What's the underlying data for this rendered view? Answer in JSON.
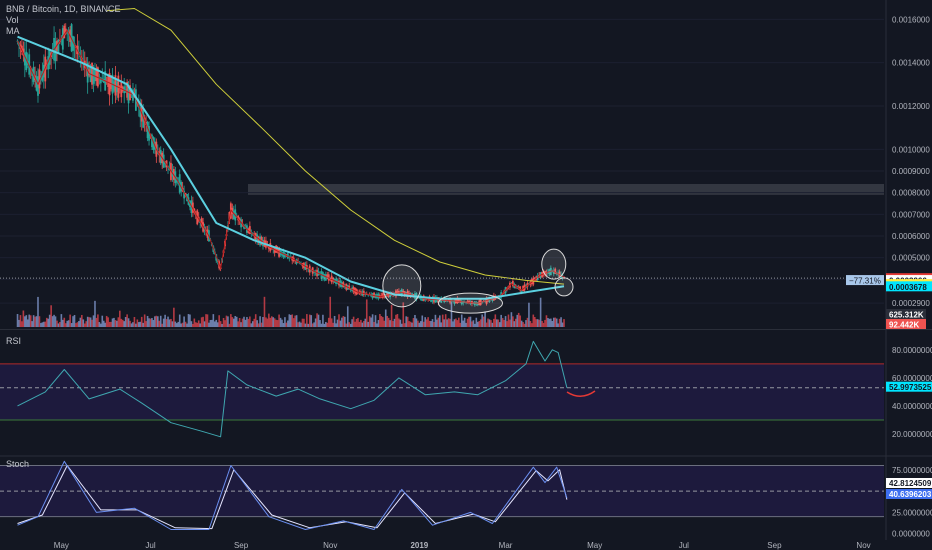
{
  "header": {
    "title": "BNB / Bitcoin, 1D, BINANCE",
    "vol_label": "Vol",
    "ma_label": "MA"
  },
  "colors": {
    "background": "#131722",
    "up": "#26a69a",
    "down": "#ef5350",
    "ma_fast": "#b71c1c",
    "ma_cyan": "#5bd0e0",
    "ma_yellow": "#cfcf3a",
    "rsi_line": "#3fa7b0",
    "stoch_k": "#6b8ff0",
    "stoch_d": "#e6e6ff",
    "band_fill": "#1d1a3d",
    "resistance": "#3a3d47",
    "annotation": "#d9d9d9",
    "curve": "#e53935"
  },
  "chart_data": [
    {
      "type": "candlestick",
      "title": "BNB / Bitcoin, 1D, BINANCE",
      "ylim": [
        0.00018,
        0.00168
      ],
      "y_ticks": [
        "0.0016000",
        "0.0014000",
        "0.0012000",
        "0.0010000",
        "0.0009000",
        "0.0008000",
        "0.0007000",
        "0.0006000",
        "0.0005000",
        "0.0004000",
        "0.0002900"
      ],
      "y_tick_values": [
        0.0016,
        0.0014,
        0.0012,
        0.001,
        0.0009,
        0.0008,
        0.0007,
        0.0006,
        0.0005,
        0.0004,
        0.00029
      ],
      "price_series": [
        {
          "t": "2018-04-01",
          "v": 0.0015
        },
        {
          "t": "2018-04-15",
          "v": 0.0013
        },
        {
          "t": "2018-04-25",
          "v": 0.00145
        },
        {
          "t": "2018-05-05",
          "v": 0.00155
        },
        {
          "t": "2018-05-20",
          "v": 0.00135
        },
        {
          "t": "2018-06-05",
          "v": 0.0013
        },
        {
          "t": "2018-06-20",
          "v": 0.00125
        },
        {
          "t": "2018-07-05",
          "v": 0.001
        },
        {
          "t": "2018-07-20",
          "v": 0.00085
        },
        {
          "t": "2018-08-01",
          "v": 0.0007
        },
        {
          "t": "2018-08-10",
          "v": 0.0006
        },
        {
          "t": "2018-08-18",
          "v": 0.00045
        },
        {
          "t": "2018-08-25",
          "v": 0.00072
        },
        {
          "t": "2018-09-05",
          "v": 0.00063
        },
        {
          "t": "2018-09-20",
          "v": 0.00055
        },
        {
          "t": "2018-10-05",
          "v": 0.0005
        },
        {
          "t": "2018-10-20",
          "v": 0.00044
        },
        {
          "t": "2018-11-05",
          "v": 0.00039
        },
        {
          "t": "2018-11-20",
          "v": 0.00034
        },
        {
          "t": "2018-12-05",
          "v": 0.00032
        },
        {
          "t": "2018-12-20",
          "v": 0.00034
        },
        {
          "t": "2019-01-05",
          "v": 0.00031
        },
        {
          "t": "2019-01-25",
          "v": 0.0003
        },
        {
          "t": "2019-02-10",
          "v": 0.00029
        },
        {
          "t": "2019-02-25",
          "v": 0.00032
        },
        {
          "t": "2019-03-05",
          "v": 0.00038
        },
        {
          "t": "2019-03-12",
          "v": 0.00035
        },
        {
          "t": "2019-03-25",
          "v": 0.00042
        },
        {
          "t": "2019-04-02",
          "v": 0.00044
        },
        {
          "t": "2019-04-10",
          "v": 0.00041
        }
      ],
      "ma_cyan": [
        {
          "t": "2018-04-01",
          "v": 0.00152
        },
        {
          "t": "2018-05-15",
          "v": 0.0014
        },
        {
          "t": "2018-06-15",
          "v": 0.0013
        },
        {
          "t": "2018-07-15",
          "v": 0.001
        },
        {
          "t": "2018-08-15",
          "v": 0.00066
        },
        {
          "t": "2018-09-10",
          "v": 0.00058
        },
        {
          "t": "2018-10-15",
          "v": 0.0005
        },
        {
          "t": "2018-11-15",
          "v": 0.00039
        },
        {
          "t": "2018-12-15",
          "v": 0.00033
        },
        {
          "t": "2019-01-15",
          "v": 0.00031
        },
        {
          "t": "2019-02-15",
          "v": 0.00031
        },
        {
          "t": "2019-03-15",
          "v": 0.00034
        },
        {
          "t": "2019-04-10",
          "v": 0.000368
        }
      ],
      "ma_yellow": [
        {
          "t": "2018-06-01",
          "v": 0.00164
        },
        {
          "t": "2018-06-20",
          "v": 0.00165
        },
        {
          "t": "2018-07-15",
          "v": 0.00155
        },
        {
          "t": "2018-08-15",
          "v": 0.0013
        },
        {
          "t": "2018-09-15",
          "v": 0.0011
        },
        {
          "t": "2018-10-15",
          "v": 0.0009
        },
        {
          "t": "2018-11-15",
          "v": 0.00072
        },
        {
          "t": "2018-12-15",
          "v": 0.00058
        },
        {
          "t": "2019-01-15",
          "v": 0.00048
        },
        {
          "t": "2019-02-15",
          "v": 0.00042
        },
        {
          "t": "2019-03-15",
          "v": 0.000395
        },
        {
          "t": "2019-04-10",
          "v": 0.000378
        }
      ],
      "resistance_zone": [
        0.00079,
        0.00084
      ],
      "current_price": 0.0004053,
      "price_labels": [
        {
          "text": "0.0004053",
          "value": 0.0004053,
          "color": "#e53935",
          "text_color": "#ffffff"
        },
        {
          "text": "0.0003966",
          "value": 0.0003966,
          "color": "#ffffff",
          "text_color": "#131722"
        },
        {
          "text": "0.0003778",
          "value": 0.0003778,
          "color": "#ffeb3b",
          "text_color": "#131722"
        },
        {
          "text": "0.0003678",
          "value": 0.0003678,
          "color": "#00e5ff",
          "text_color": "#131722"
        }
      ],
      "change_label": "−77.31%",
      "volume_labels": [
        {
          "text": "625.312K",
          "color": "#2a2e39",
          "text_color": "#ffffff"
        },
        {
          "text": "92.442K",
          "color": "#ef5350",
          "text_color": "#ffffff"
        }
      ],
      "annotations": [
        {
          "type": "ellipse",
          "t": "2018-12-20",
          "v": 0.00037
        },
        {
          "type": "ellipse",
          "t": "2019-02-05",
          "v": 0.00029
        },
        {
          "type": "ellipse",
          "t": "2019-04-03",
          "v": 0.00047
        },
        {
          "type": "circle",
          "t": "2019-04-10",
          "v": 0.000365
        }
      ]
    },
    {
      "type": "line",
      "title": "RSI",
      "ylim": [
        5,
        92
      ],
      "y_ticks": [
        "80.0000000",
        "60.0000000",
        "40.0000000",
        "20.0000000"
      ],
      "y_tick_values": [
        80,
        60,
        40,
        20
      ],
      "bands": [
        70,
        30
      ],
      "midline": 52.9973525,
      "value_label": "52.9973525",
      "series": [
        {
          "t": "2018-04-01",
          "v": 40
        },
        {
          "t": "2018-04-20",
          "v": 50
        },
        {
          "t": "2018-05-03",
          "v": 66
        },
        {
          "t": "2018-05-20",
          "v": 45
        },
        {
          "t": "2018-06-10",
          "v": 52
        },
        {
          "t": "2018-06-25",
          "v": 42
        },
        {
          "t": "2018-07-15",
          "v": 28
        },
        {
          "t": "2018-08-05",
          "v": 22
        },
        {
          "t": "2018-08-18",
          "v": 18
        },
        {
          "t": "2018-08-23",
          "v": 65
        },
        {
          "t": "2018-09-05",
          "v": 55
        },
        {
          "t": "2018-09-25",
          "v": 47
        },
        {
          "t": "2018-10-10",
          "v": 52
        },
        {
          "t": "2018-10-25",
          "v": 45
        },
        {
          "t": "2018-11-15",
          "v": 38
        },
        {
          "t": "2018-12-01",
          "v": 44
        },
        {
          "t": "2018-12-18",
          "v": 60
        },
        {
          "t": "2019-01-05",
          "v": 48
        },
        {
          "t": "2019-01-25",
          "v": 50
        },
        {
          "t": "2019-02-10",
          "v": 48
        },
        {
          "t": "2019-03-01",
          "v": 58
        },
        {
          "t": "2019-03-15",
          "v": 70
        },
        {
          "t": "2019-03-20",
          "v": 86
        },
        {
          "t": "2019-03-28",
          "v": 72
        },
        {
          "t": "2019-04-02",
          "v": 80
        },
        {
          "t": "2019-04-06",
          "v": 78
        },
        {
          "t": "2019-04-12",
          "v": 53
        }
      ]
    },
    {
      "type": "line",
      "title": "Stoch",
      "ylim": [
        -5,
        90
      ],
      "y_ticks": [
        "75.0000000",
        "25.0000000",
        "0.0000000"
      ],
      "y_tick_values": [
        75,
        25,
        0
      ],
      "bands": [
        80,
        20
      ],
      "midline": 50,
      "value_labels": [
        "42.8124509",
        "40.6396203"
      ],
      "series": [
        {
          "name": "K",
          "points": [
            {
              "t": "2018-04-01",
              "v": 10
            },
            {
              "t": "2018-04-15",
              "v": 20
            },
            {
              "t": "2018-05-03",
              "v": 85
            },
            {
              "t": "2018-05-25",
              "v": 25
            },
            {
              "t": "2018-06-20",
              "v": 30
            },
            {
              "t": "2018-07-15",
              "v": 5
            },
            {
              "t": "2018-08-10",
              "v": 5
            },
            {
              "t": "2018-08-25",
              "v": 80
            },
            {
              "t": "2018-09-20",
              "v": 20
            },
            {
              "t": "2018-10-15",
              "v": 5
            },
            {
              "t": "2018-11-10",
              "v": 15
            },
            {
              "t": "2018-12-01",
              "v": 5
            },
            {
              "t": "2018-12-20",
              "v": 52
            },
            {
              "t": "2019-01-10",
              "v": 10
            },
            {
              "t": "2019-02-05",
              "v": 25
            },
            {
              "t": "2019-02-20",
              "v": 12
            },
            {
              "t": "2019-03-20",
              "v": 78
            },
            {
              "t": "2019-03-28",
              "v": 60
            },
            {
              "t": "2019-04-05",
              "v": 78
            },
            {
              "t": "2019-04-12",
              "v": 42
            }
          ]
        },
        {
          "name": "D",
          "points": [
            {
              "t": "2018-04-01",
              "v": 12
            },
            {
              "t": "2018-04-18",
              "v": 22
            },
            {
              "t": "2018-05-05",
              "v": 80
            },
            {
              "t": "2018-05-28",
              "v": 28
            },
            {
              "t": "2018-06-22",
              "v": 28
            },
            {
              "t": "2018-07-18",
              "v": 7
            },
            {
              "t": "2018-08-12",
              "v": 6
            },
            {
              "t": "2018-08-27",
              "v": 75
            },
            {
              "t": "2018-09-22",
              "v": 22
            },
            {
              "t": "2018-10-18",
              "v": 7
            },
            {
              "t": "2018-11-12",
              "v": 14
            },
            {
              "t": "2018-12-03",
              "v": 7
            },
            {
              "t": "2018-12-22",
              "v": 48
            },
            {
              "t": "2019-01-12",
              "v": 12
            },
            {
              "t": "2019-02-07",
              "v": 23
            },
            {
              "t": "2019-02-22",
              "v": 14
            },
            {
              "t": "2019-03-22",
              "v": 74
            },
            {
              "t": "2019-03-30",
              "v": 62
            },
            {
              "t": "2019-04-07",
              "v": 75
            },
            {
              "t": "2019-04-12",
              "v": 40
            }
          ]
        }
      ]
    }
  ],
  "x_axis": {
    "range": [
      "2018-03-20",
      "2019-11-15"
    ],
    "labels": [
      {
        "text": "May",
        "t": "2018-05-01"
      },
      {
        "text": "Jul",
        "t": "2018-07-01"
      },
      {
        "text": "Sep",
        "t": "2018-09-01"
      },
      {
        "text": "Nov",
        "t": "2018-11-01"
      },
      {
        "text": "2019",
        "t": "2019-01-01"
      },
      {
        "text": "Mar",
        "t": "2019-03-01"
      },
      {
        "text": "May",
        "t": "2019-05-01"
      },
      {
        "text": "Jul",
        "t": "2019-07-01"
      },
      {
        "text": "Sep",
        "t": "2019-09-01"
      },
      {
        "text": "Nov",
        "t": "2019-11-01"
      }
    ]
  }
}
